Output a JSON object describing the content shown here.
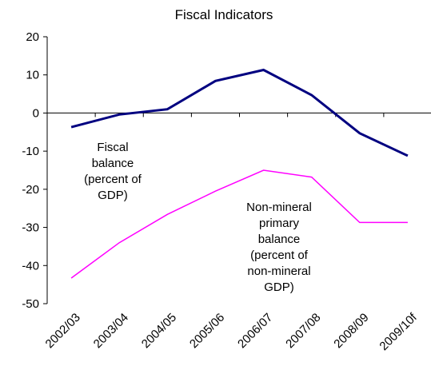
{
  "chart_data": {
    "type": "line",
    "title": "Fiscal Indicators",
    "categories": [
      "2002/03",
      "2003/04",
      "2004/05",
      "2005/06",
      "2006/07",
      "2007/08",
      "2008/09",
      "2009/10f"
    ],
    "ylim": [
      -50,
      20
    ],
    "yticks": [
      20,
      10,
      0,
      -10,
      -20,
      -30,
      -40,
      -50
    ],
    "grid": false,
    "series": [
      {
        "name": "Fiscal balance (percent of GDP)",
        "name_lines": [
          "Fiscal",
          "balance",
          "(percent of",
          "GDP)"
        ],
        "color": "#000080",
        "values": [
          -3.7,
          -0.4,
          1.0,
          8.4,
          11.3,
          4.7,
          -5.3,
          -11.2
        ]
      },
      {
        "name": "Non-mineral primary balance (percent of non-mineral GDP)",
        "name_lines": [
          "Non-mineral",
          "primary",
          "balance",
          "(percent of",
          "non-mineral",
          "GDP)"
        ],
        "color": "#ff00ff",
        "values": [
          -43.3,
          -34.0,
          -26.6,
          -20.5,
          -15.0,
          -16.8,
          -28.7,
          -28.7
        ]
      }
    ]
  }
}
